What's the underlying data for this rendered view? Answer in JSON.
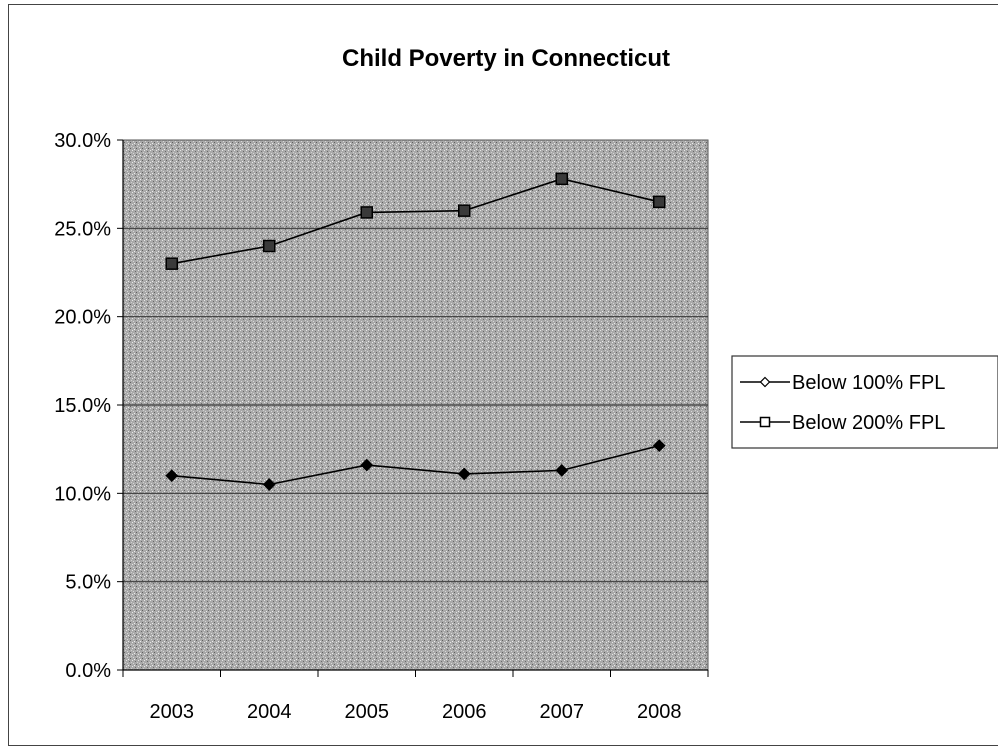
{
  "chart_data": {
    "type": "line",
    "title": "Child Poverty in Connecticut",
    "xlabel": "",
    "ylabel": "",
    "categories": [
      "2003",
      "2004",
      "2005",
      "2006",
      "2007",
      "2008"
    ],
    "y_ticks": [
      "0.0%",
      "5.0%",
      "10.0%",
      "15.0%",
      "20.0%",
      "25.0%",
      "30.0%"
    ],
    "ylim": [
      0,
      30
    ],
    "grid": true,
    "legend_position": "right",
    "series": [
      {
        "name": "Below 100% FPL",
        "marker": "diamond",
        "color": "#000000",
        "values": [
          11.0,
          10.5,
          11.6,
          11.1,
          11.3,
          12.7
        ]
      },
      {
        "name": "Below 200% FPL",
        "marker": "square",
        "color": "#000000",
        "values": [
          23.0,
          24.0,
          25.9,
          26.0,
          27.8,
          26.5
        ]
      }
    ]
  },
  "colors": {
    "plot_background": "#a9a9a9",
    "gridline": "#3a3a3a",
    "frame": "#444444"
  }
}
